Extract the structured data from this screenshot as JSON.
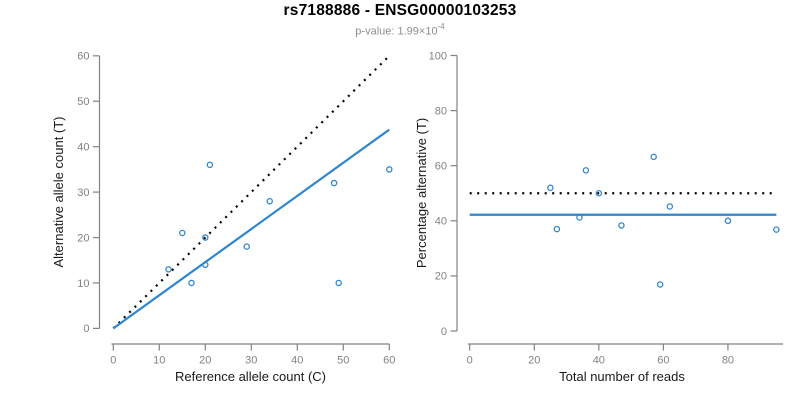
{
  "header": {
    "title": "rs7188886 - ENSG00000103253",
    "pvalue_prefix": "p-value: 1.99×10",
    "pvalue_exponent": "-4"
  },
  "colors": {
    "point": "#2E86D0",
    "fit_line": "#2E86D0",
    "reference_line": "#000000",
    "axis": "#828282",
    "tick_label": "#828282",
    "axis_title": "#1a1a1a",
    "title": "#000000",
    "subtitle": "#8c8c8c"
  },
  "chart_data": [
    {
      "type": "scatter",
      "panel": "left",
      "xlabel": "Reference allele count (C)",
      "ylabel": "Alternative allele count (T)",
      "xlim": [
        0,
        60
      ],
      "ylim": [
        0,
        60
      ],
      "xticks": [
        0,
        10,
        20,
        30,
        40,
        50,
        60
      ],
      "yticks": [
        0,
        10,
        20,
        30,
        40,
        50,
        60
      ],
      "grid": false,
      "legend": null,
      "points": [
        [
          12,
          13
        ],
        [
          15,
          21
        ],
        [
          17,
          10
        ],
        [
          20,
          14
        ],
        [
          20,
          20
        ],
        [
          21,
          36
        ],
        [
          29,
          18
        ],
        [
          34,
          28
        ],
        [
          48,
          32
        ],
        [
          49,
          10
        ],
        [
          60,
          35
        ]
      ],
      "lines": [
        {
          "name": "identity-line",
          "style": "dotted",
          "color_key": "reference_line",
          "from": [
            0,
            0
          ],
          "to": [
            60,
            60
          ]
        },
        {
          "name": "fit-line",
          "style": "solid",
          "color_key": "fit_line",
          "from": [
            0,
            0
          ],
          "to": [
            60,
            43.75
          ]
        }
      ]
    },
    {
      "type": "scatter",
      "panel": "right",
      "xlabel": "Total number of reads",
      "ylabel": "Percentage alternative (T)",
      "xlim": [
        0,
        95
      ],
      "ylim": [
        0,
        100
      ],
      "xticks": [
        0,
        20,
        40,
        60,
        80
      ],
      "yticks": [
        0,
        20,
        40,
        60,
        80,
        100
      ],
      "grid": false,
      "legend": null,
      "points": [
        [
          25,
          52.0
        ],
        [
          27,
          37.0
        ],
        [
          34,
          41.2
        ],
        [
          36,
          58.3
        ],
        [
          40,
          50.0
        ],
        [
          47,
          38.3
        ],
        [
          57,
          63.2
        ],
        [
          59,
          16.9
        ],
        [
          62,
          45.2
        ],
        [
          80,
          40.0
        ],
        [
          95,
          36.8
        ]
      ],
      "lines": [
        {
          "name": "expected-50pct-line",
          "style": "dotted",
          "color_key": "reference_line",
          "from": [
            0,
            50
          ],
          "to": [
            95,
            50
          ]
        },
        {
          "name": "mean-percentage-line",
          "style": "solid",
          "color_key": "fit_line",
          "from": [
            0,
            42.2
          ],
          "to": [
            95,
            42.2
          ]
        }
      ]
    }
  ]
}
